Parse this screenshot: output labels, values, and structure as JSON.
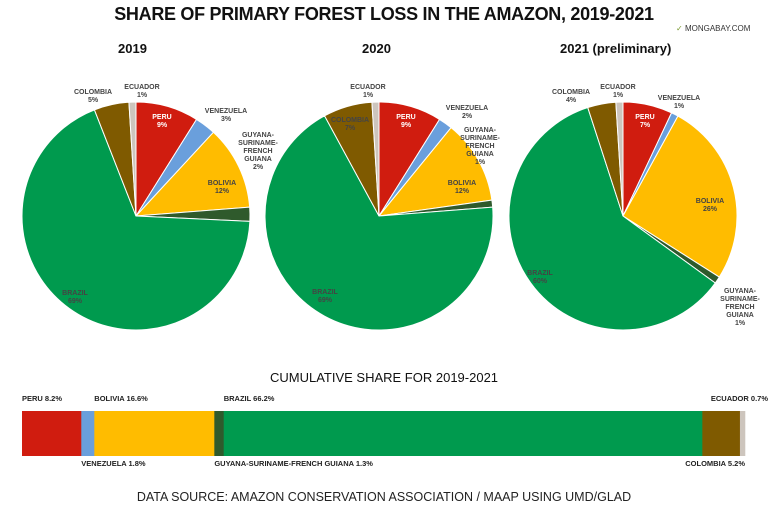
{
  "title": "SHARE OF PRIMARY FOREST LOSS IN THE AMAZON, 2019-2021",
  "brand": "MONGABAY.COM",
  "source": "DATA SOURCE: AMAZON CONSERVATION ASSOCIATION / MAAP USING UMD/GLAD",
  "colors": {
    "PERU": "#d01c0f",
    "VENEZUELA": "#6a9fdc",
    "BOLIVIA": "#ffbc00",
    "GUYANA-SURINAME-FRENCH GUIANA": "#2f5a2c",
    "BRAZIL": "#009a4e",
    "COLOMBIA": "#7f5a00",
    "ECUADOR": "#cdc5bd"
  },
  "chart_data": [
    {
      "type": "pie",
      "title": "2019",
      "labels": [
        "PERU",
        "VENEZUELA",
        "BOLIVIA",
        "GUYANA-SURINAME-FRENCH GUIANA",
        "BRAZIL",
        "COLOMBIA",
        "ECUADOR"
      ],
      "values": [
        9,
        3,
        12,
        2,
        69,
        5,
        1
      ],
      "unit": "%"
    },
    {
      "type": "pie",
      "title": "2020",
      "labels": [
        "PERU",
        "VENEZUELA",
        "BOLIVIA",
        "GUYANA-SURINAME-FRENCH GUIANA",
        "BRAZIL",
        "COLOMBIA",
        "ECUADOR"
      ],
      "values": [
        9,
        2,
        12,
        1,
        69,
        7,
        1
      ],
      "unit": "%"
    },
    {
      "type": "pie",
      "title": "2021 (preliminary)",
      "labels": [
        "PERU",
        "VENEZUELA",
        "BOLIVIA",
        "GUYANA-SURINAME-FRENCH GUIANA",
        "BRAZIL",
        "COLOMBIA",
        "ECUADOR"
      ],
      "values": [
        7,
        1,
        26,
        1,
        60,
        4,
        1
      ],
      "unit": "%"
    },
    {
      "type": "bar",
      "orientation": "horizontal-stacked",
      "title": "CUMULATIVE SHARE FOR 2019-2021",
      "labels": [
        "PERU",
        "VENEZUELA",
        "BOLIVIA",
        "GUYANA-SURINAME-FRENCH GUIANA",
        "BRAZIL",
        "COLOMBIA",
        "ECUADOR"
      ],
      "values": [
        8.2,
        1.8,
        16.6,
        1.3,
        66.2,
        5.2,
        0.7
      ],
      "unit": "%"
    }
  ]
}
